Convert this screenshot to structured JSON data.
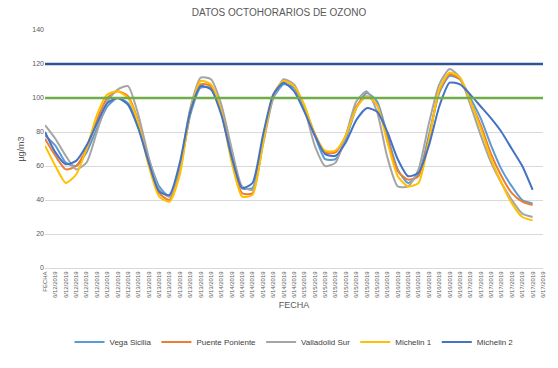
{
  "chart_data": {
    "type": "line",
    "title": "DATOS OCTOHORARIOS DE OZONO",
    "x_label": "FECHA",
    "y_label": "µg/m3",
    "categories": [
      "FECHA",
      "6/12/2019",
      "6/12/2019",
      "6/12/2019",
      "6/12/2019",
      "6/12/2019",
      "6/12/2019",
      "6/12/2019",
      "6/12/2019",
      "6/13/2019",
      "6/13/2019",
      "6/13/2019",
      "6/13/2019",
      "6/13/2019",
      "6/13/2019",
      "6/13/2019",
      "6/13/2019",
      "6/14/2019",
      "6/14/2019",
      "6/14/2019",
      "6/14/2019",
      "6/14/2019",
      "6/14/2019",
      "6/14/2019",
      "6/14/2019",
      "6/15/2019",
      "6/15/2019",
      "6/15/2019",
      "6/15/2019",
      "6/15/2019",
      "6/15/2019",
      "6/15/2019",
      "6/15/2019",
      "6/16/2019",
      "6/16/2019",
      "6/16/2019",
      "6/16/2019",
      "6/16/2019",
      "6/16/2019",
      "6/16/2019",
      "6/16/2019",
      "6/17/2019",
      "6/17/2019",
      "6/17/2019",
      "6/17/2019",
      "6/17/2019",
      "6/17/2019",
      "6/17/2019",
      "6/17/2019"
    ],
    "series": [
      {
        "name": "Vega Sicilia",
        "color": "#5b9bd5",
        "values": [
          78,
          72,
          62,
          60,
          68,
          82,
          95,
          100,
          97,
          84,
          64,
          48,
          42,
          58,
          90,
          106,
          106,
          92,
          68,
          47,
          47,
          75,
          100,
          108,
          106,
          94,
          78,
          64,
          64,
          76,
          94,
          103,
          98,
          78,
          58,
          50,
          55,
          78,
          103,
          113,
          111,
          100,
          88,
          72,
          58,
          48,
          40,
          38,
          null
        ]
      },
      {
        "name": "Puente Poniente",
        "color": "#ed7d31",
        "values": [
          76,
          66,
          58,
          60,
          70,
          87,
          100,
          104,
          101,
          86,
          62,
          44,
          40,
          57,
          92,
          108,
          107,
          92,
          64,
          44,
          44,
          74,
          102,
          110,
          107,
          95,
          79,
          68,
          68,
          78,
          95,
          101,
          96,
          76,
          57,
          52,
          54,
          76,
          104,
          114,
          111,
          98,
          84,
          67,
          54,
          44,
          39,
          37,
          null
        ]
      },
      {
        "name": "Valladolid Sur",
        "color": "#a5a5a5",
        "values": [
          84,
          76,
          66,
          58,
          62,
          80,
          98,
          105,
          107,
          90,
          65,
          46,
          42,
          60,
          94,
          112,
          111,
          96,
          70,
          48,
          46,
          72,
          100,
          111,
          108,
          94,
          72,
          60,
          62,
          78,
          98,
          104,
          92,
          65,
          48,
          48,
          58,
          85,
          108,
          117,
          112,
          96,
          78,
          62,
          50,
          40,
          32,
          30,
          null
        ]
      },
      {
        "name": "Michelin 1",
        "color": "#ffc000",
        "values": [
          72,
          60,
          50,
          55,
          70,
          90,
          102,
          104,
          100,
          85,
          60,
          42,
          39,
          55,
          92,
          110,
          108,
          92,
          62,
          42,
          43,
          73,
          102,
          110,
          107,
          96,
          78,
          69,
          69,
          78,
          94,
          101,
          96,
          74,
          54,
          48,
          50,
          75,
          105,
          115,
          112,
          98,
          82,
          64,
          50,
          38,
          30,
          28,
          null
        ]
      },
      {
        "name": "Michelin 2",
        "color": "#4472c4",
        "values": [
          80,
          68,
          61,
          63,
          72,
          85,
          97,
          100,
          96,
          82,
          62,
          45,
          43,
          62,
          92,
          107,
          105,
          90,
          65,
          47,
          50,
          78,
          102,
          109,
          104,
          92,
          78,
          67,
          66,
          74,
          87,
          94,
          92,
          80,
          64,
          54,
          56,
          72,
          95,
          109,
          108,
          102,
          95,
          88,
          80,
          70,
          60,
          46,
          null
        ]
      }
    ],
    "hlines": [
      {
        "value": 120,
        "color": "#2f5597"
      },
      {
        "value": 100,
        "color": "#70ad47"
      }
    ],
    "ylim": [
      0,
      140
    ],
    "yticks": [
      0,
      20,
      40,
      60,
      80,
      100,
      120,
      140
    ],
    "grid": true,
    "legend": "bottom"
  }
}
